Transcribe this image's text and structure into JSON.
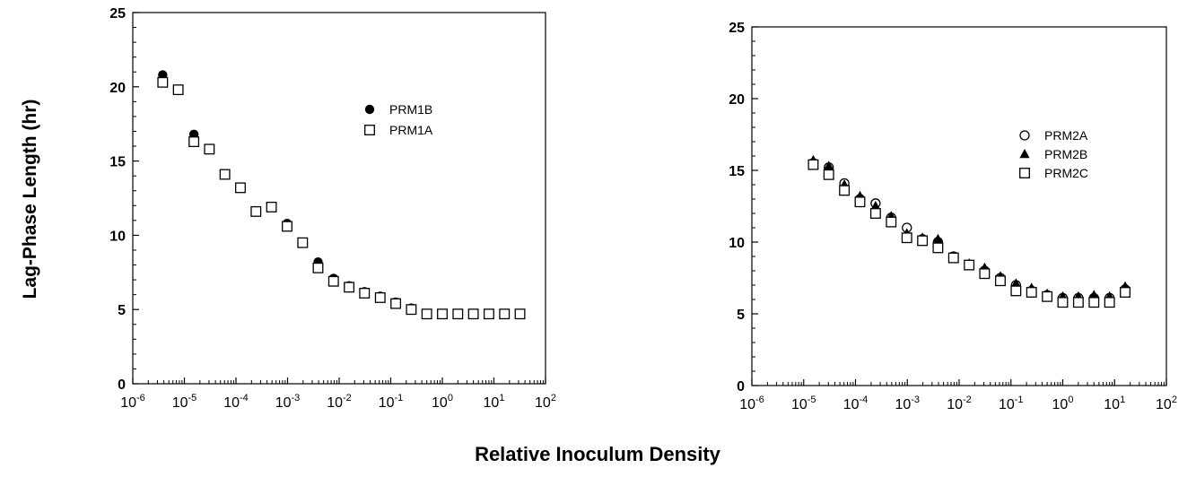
{
  "figure": {
    "ylabel": "Lag-Phase Length (hr)",
    "xlabel": "Relative Inoculum Density"
  },
  "chart_data": [
    {
      "type": "scatter",
      "x_scale": "log",
      "xlim": [
        1e-06,
        100
      ],
      "ylim": [
        0,
        25
      ],
      "x_ticks": [
        1e-06,
        1e-05,
        0.0001,
        0.001,
        0.01,
        0.1,
        1,
        10,
        100
      ],
      "x_tick_labels": [
        {
          "base": "10",
          "exp": "-6"
        },
        {
          "base": "10",
          "exp": "-5"
        },
        {
          "base": "10",
          "exp": "-4"
        },
        {
          "base": "10",
          "exp": "-3"
        },
        {
          "base": "10",
          "exp": "-2"
        },
        {
          "base": "10",
          "exp": "-1"
        },
        {
          "base": "10",
          "exp": "0"
        },
        {
          "base": "10",
          "exp": "1"
        },
        {
          "base": "10",
          "exp": "2"
        }
      ],
      "y_ticks": [
        0,
        5,
        10,
        15,
        20,
        25
      ],
      "y_tick_labels": [
        "0",
        "5",
        "10",
        "15",
        "20",
        "25"
      ],
      "grid": false,
      "legend_position": "upper-right",
      "series": [
        {
          "name": "PRM1B",
          "marker": "filled-circle",
          "color": "#000000",
          "x": [
            3.8e-06,
            1.53e-05,
            0.00098,
            0.00196,
            0.0039,
            0.0078,
            0.0156,
            0.031,
            0.0625,
            0.125,
            0.25
          ],
          "y": [
            20.8,
            16.8,
            10.8,
            9.5,
            8.2,
            7.1,
            6.6,
            6.2,
            5.9,
            5.5,
            5.1
          ]
        },
        {
          "name": "PRM1A",
          "marker": "open-square",
          "color": "#000000",
          "x": [
            3.8e-06,
            7.6e-06,
            1.53e-05,
            3.05e-05,
            6.1e-05,
            0.000122,
            0.000244,
            0.000488,
            0.00098,
            0.00196,
            0.0039,
            0.0078,
            0.0156,
            0.031,
            0.0625,
            0.125,
            0.25,
            0.5,
            1,
            2,
            4,
            8,
            16,
            32
          ],
          "y": [
            20.3,
            19.8,
            16.3,
            15.8,
            14.1,
            13.2,
            11.6,
            11.9,
            10.6,
            9.5,
            7.8,
            6.9,
            6.5,
            6.1,
            5.8,
            5.4,
            5.0,
            4.7,
            4.7,
            4.7,
            4.7,
            4.7,
            4.7,
            4.7
          ]
        }
      ]
    },
    {
      "type": "scatter",
      "x_scale": "log",
      "xlim": [
        1e-06,
        100
      ],
      "ylim": [
        0,
        25
      ],
      "x_ticks": [
        1e-06,
        1e-05,
        0.0001,
        0.001,
        0.01,
        0.1,
        1,
        10,
        100
      ],
      "x_tick_labels": [
        {
          "base": "10",
          "exp": "-6"
        },
        {
          "base": "10",
          "exp": "-5"
        },
        {
          "base": "10",
          "exp": "-4"
        },
        {
          "base": "10",
          "exp": "-3"
        },
        {
          "base": "10",
          "exp": "-2"
        },
        {
          "base": "10",
          "exp": "-1"
        },
        {
          "base": "10",
          "exp": "0"
        },
        {
          "base": "10",
          "exp": "1"
        },
        {
          "base": "10",
          "exp": "2"
        }
      ],
      "y_ticks": [
        0,
        5,
        10,
        15,
        20,
        25
      ],
      "y_tick_labels": [
        "0",
        "5",
        "10",
        "15",
        "20",
        "25"
      ],
      "grid": false,
      "legend_position": "upper-right",
      "series": [
        {
          "name": "PRM2A",
          "marker": "open-circle",
          "color": "#000000",
          "x": [
            1.53e-05,
            3.05e-05,
            6.1e-05,
            0.000122,
            0.000244,
            0.000488,
            0.00098,
            0.00196,
            0.0039,
            0.0078,
            0.0156,
            0.031,
            0.0625,
            0.125,
            0.25,
            0.5,
            1,
            2,
            4,
            8,
            16
          ],
          "y": [
            15.5,
            15.2,
            14.1,
            13.0,
            12.7,
            11.7,
            11.0,
            10.2,
            10.0,
            9.0,
            8.4,
            8.0,
            7.5,
            7.0,
            6.6,
            6.3,
            6.1,
            6.1,
            6.1,
            6.1,
            6.7
          ]
        },
        {
          "name": "PRM2B",
          "marker": "filled-triangle",
          "color": "#000000",
          "x": [
            1.53e-05,
            3.05e-05,
            6.1e-05,
            0.000122,
            0.000244,
            0.000488,
            0.00098,
            0.00196,
            0.0039,
            0.0078,
            0.0156,
            0.031,
            0.0625,
            0.125,
            0.25,
            0.5,
            1,
            2,
            4,
            8,
            16
          ],
          "y": [
            15.7,
            15.3,
            14.0,
            13.2,
            12.5,
            11.8,
            10.6,
            10.3,
            10.2,
            9.0,
            8.5,
            8.2,
            7.6,
            7.1,
            6.8,
            6.4,
            6.2,
            6.2,
            6.3,
            6.2,
            6.9
          ]
        },
        {
          "name": "PRM2C",
          "marker": "open-square",
          "color": "#000000",
          "x": [
            1.53e-05,
            3.05e-05,
            6.1e-05,
            0.000122,
            0.000244,
            0.000488,
            0.00098,
            0.00196,
            0.0039,
            0.0078,
            0.0156,
            0.031,
            0.0625,
            0.125,
            0.25,
            0.5,
            1,
            2,
            4,
            8,
            16
          ],
          "y": [
            15.4,
            14.7,
            13.6,
            12.8,
            12.0,
            11.4,
            10.3,
            10.1,
            9.6,
            8.9,
            8.4,
            7.8,
            7.3,
            6.6,
            6.5,
            6.2,
            5.8,
            5.8,
            5.8,
            5.8,
            6.5
          ]
        }
      ]
    }
  ]
}
